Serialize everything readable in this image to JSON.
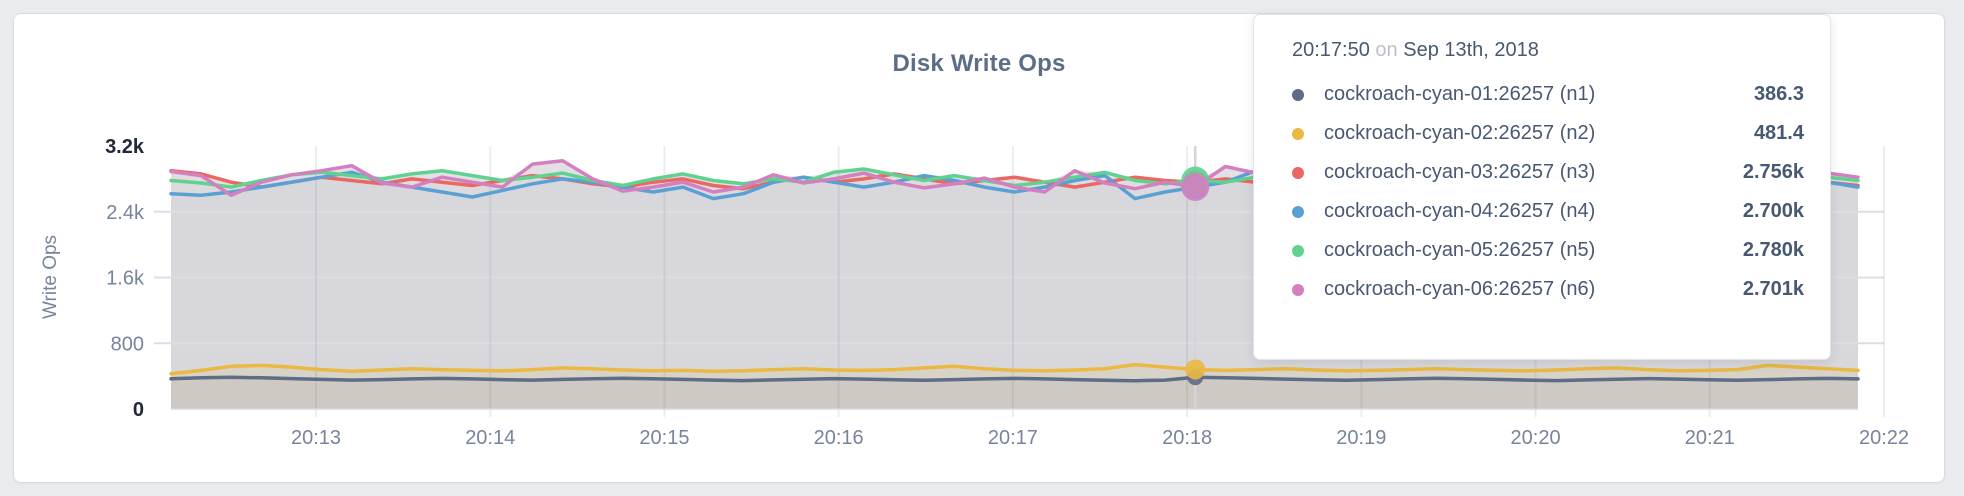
{
  "card": {
    "title": "Disk Write Ops"
  },
  "tooltip": {
    "time": "20:17:50",
    "on_word": "on",
    "date": "Sep 13th, 2018",
    "series": [
      {
        "name": "cockroach-cyan-01:26257 (n1)",
        "value": "386.3",
        "color": "#5f6c87"
      },
      {
        "name": "cockroach-cyan-02:26257 (n2)",
        "value": "481.4",
        "color": "#ebb844"
      },
      {
        "name": "cockroach-cyan-03:26257 (n3)",
        "value": "2.756k",
        "color": "#ea6762"
      },
      {
        "name": "cockroach-cyan-04:26257 (n4)",
        "value": "2.700k",
        "color": "#59a0d4"
      },
      {
        "name": "cockroach-cyan-05:26257 (n5)",
        "value": "2.780k",
        "color": "#5fd28f"
      },
      {
        "name": "cockroach-cyan-06:26257 (n6)",
        "value": "2.701k",
        "color": "#d37fc0"
      }
    ]
  },
  "chart_data": {
    "type": "line",
    "title": "Disk Write Ops",
    "ylabel": "Write Ops",
    "ylim": [
      0,
      3200
    ],
    "grid": true,
    "legend_position": "tooltip-overlay",
    "x_ticks": [
      "20:13",
      "20:14",
      "20:15",
      "20:16",
      "20:17",
      "20:18",
      "20:19",
      "20:20",
      "20:21",
      "20:22"
    ],
    "y_ticks": [
      {
        "label": "3.2k",
        "value": 3200,
        "emphasis": true
      },
      {
        "label": "2.4k",
        "value": 2400,
        "emphasis": false
      },
      {
        "label": "1.6k",
        "value": 1600,
        "emphasis": false
      },
      {
        "label": "800",
        "value": 800,
        "emphasis": false
      },
      {
        "label": "0",
        "value": 0,
        "emphasis": true
      }
    ],
    "hover": {
      "time": "20:17:50",
      "date": "Sep 13th, 2018",
      "index": 34
    },
    "series": [
      {
        "name": "cockroach-cyan-01:26257 (n1)",
        "color": "#5f6c87",
        "hover_value": 386.3,
        "values": [
          368,
          380,
          386,
          380,
          370,
          360,
          352,
          358,
          366,
          372,
          366,
          358,
          352,
          360,
          368,
          374,
          368,
          360,
          352,
          346,
          354,
          362,
          370,
          364,
          356,
          350,
          358,
          366,
          372,
          366,
          358,
          350,
          344,
          352,
          386,
          380,
          372,
          364,
          356,
          350,
          358,
          366,
          374,
          368,
          360,
          352,
          346,
          354,
          362,
          370,
          364,
          356,
          350,
          358,
          366,
          372,
          366
        ]
      },
      {
        "name": "cockroach-cyan-02:26257 (n2)",
        "color": "#ebb844",
        "hover_value": 481.4,
        "values": [
          430,
          470,
          520,
          530,
          510,
          480,
          460,
          475,
          490,
          480,
          470,
          465,
          480,
          500,
          490,
          475,
          465,
          470,
          460,
          465,
          480,
          490,
          475,
          470,
          480,
          500,
          520,
          490,
          470,
          465,
          475,
          490,
          540,
          510,
          481,
          470,
          480,
          490,
          475,
          465,
          470,
          480,
          490,
          480,
          470,
          465,
          475,
          490,
          500,
          480,
          465,
          470,
          480,
          530,
          510,
          490,
          470
        ]
      },
      {
        "name": "cockroach-cyan-03:26257 (n3)",
        "color": "#ea6762",
        "hover_value": 2756,
        "values": [
          2900,
          2860,
          2760,
          2700,
          2760,
          2820,
          2780,
          2740,
          2800,
          2760,
          2720,
          2780,
          2840,
          2800,
          2740,
          2700,
          2760,
          2800,
          2720,
          2680,
          2760,
          2820,
          2760,
          2800,
          2860,
          2800,
          2740,
          2780,
          2820,
          2760,
          2700,
          2760,
          2820,
          2780,
          2756,
          2800,
          2760,
          2700,
          2740,
          2800,
          2760,
          2720,
          2780,
          2840,
          2780,
          2720,
          2760,
          2800,
          2740,
          2700,
          2760,
          2820,
          2780,
          2740,
          2800,
          2760,
          2720
        ]
      },
      {
        "name": "cockroach-cyan-04:26257 (n4)",
        "color": "#59a0d4",
        "hover_value": 2700,
        "values": [
          2620,
          2600,
          2640,
          2700,
          2760,
          2820,
          2880,
          2760,
          2700,
          2640,
          2580,
          2660,
          2740,
          2800,
          2760,
          2700,
          2640,
          2700,
          2560,
          2620,
          2760,
          2820,
          2760,
          2700,
          2760,
          2840,
          2780,
          2700,
          2640,
          2700,
          2780,
          2840,
          2560,
          2640,
          2700,
          2760,
          2900,
          2820,
          2740,
          2780,
          2700,
          2640,
          2700,
          2780,
          2860,
          2780,
          2700,
          2760,
          2820,
          2760,
          2700,
          2640,
          2720,
          2780,
          2840,
          2760,
          2700
        ]
      },
      {
        "name": "cockroach-cyan-05:26257 (n5)",
        "color": "#5fd28f",
        "hover_value": 2780,
        "values": [
          2780,
          2750,
          2700,
          2780,
          2850,
          2880,
          2840,
          2800,
          2860,
          2900,
          2840,
          2780,
          2820,
          2870,
          2780,
          2720,
          2800,
          2860,
          2780,
          2740,
          2800,
          2760,
          2880,
          2920,
          2850,
          2780,
          2840,
          2780,
          2720,
          2760,
          2820,
          2880,
          2780,
          2740,
          2780,
          2760,
          2820,
          2880,
          2940,
          2860,
          2780,
          2820,
          2760,
          2700,
          2760,
          2840,
          2780,
          2720,
          2780,
          2860,
          2800,
          2740,
          2780,
          2680,
          2760,
          2820,
          2780
        ]
      },
      {
        "name": "cockroach-cyan-06:26257 (n6)",
        "color": "#d37fc0",
        "hover_value": 2701,
        "values": [
          2890,
          2840,
          2600,
          2760,
          2850,
          2900,
          2960,
          2750,
          2700,
          2820,
          2760,
          2700,
          2980,
          3020,
          2800,
          2650,
          2700,
          2760,
          2640,
          2700,
          2850,
          2750,
          2800,
          2870,
          2760,
          2690,
          2740,
          2810,
          2700,
          2640,
          2900,
          2750,
          2680,
          2760,
          2701,
          2950,
          2870,
          2800,
          2750,
          2820,
          2640,
          2750,
          2950,
          2700,
          2600,
          2720,
          2810,
          2750,
          2690,
          2760,
          2840,
          2680,
          2600,
          2700,
          2780,
          2870,
          2820
        ]
      }
    ]
  }
}
